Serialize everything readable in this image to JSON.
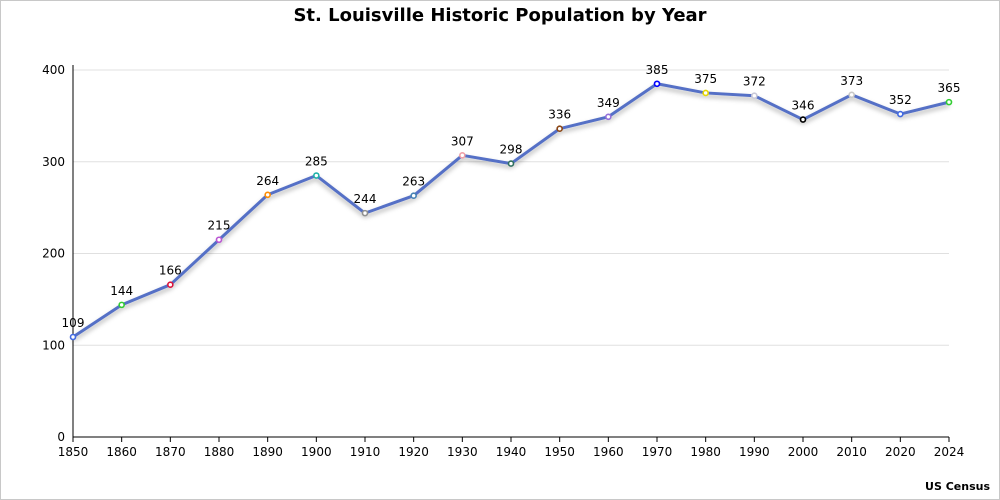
{
  "chart_data": {
    "type": "line",
    "title": "St. Louisville Historic Population by Year",
    "source": "US Census",
    "xlabel": "",
    "ylabel": "",
    "categories": [
      "1850",
      "1860",
      "1870",
      "1880",
      "1890",
      "1900",
      "1910",
      "1920",
      "1930",
      "1940",
      "1950",
      "1960",
      "1970",
      "1980",
      "1990",
      "2000",
      "2010",
      "2020",
      "2024"
    ],
    "series": [
      {
        "name": "Population",
        "color": "#5470c6",
        "values": [
          109,
          144,
          166,
          215,
          264,
          285,
          244,
          263,
          307,
          298,
          336,
          349,
          385,
          375,
          372,
          346,
          373,
          352,
          365
        ],
        "marker_colors": [
          "#4169e1",
          "#32cd32",
          "#dc143c",
          "#ba55d3",
          "#ff8c00",
          "#20b2aa",
          "#909090",
          "#4682b4",
          "#f0a0a8",
          "#2f6f5f",
          "#8b4513",
          "#9370db",
          "#0000ff",
          "#e6d800",
          "#c8c8d8",
          "#000000",
          "#c8c8c8",
          "#4169e1",
          "#32cd32"
        ]
      }
    ],
    "ylim": [
      0,
      400
    ],
    "yticks": [
      0,
      100,
      200,
      300,
      400
    ],
    "grid": true,
    "data_labels": true
  }
}
